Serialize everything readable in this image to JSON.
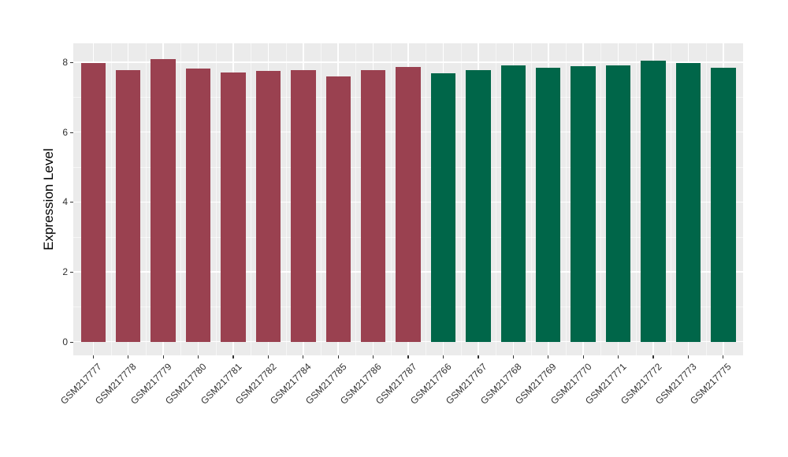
{
  "chart": {
    "background": "#ffffff",
    "panel_background": "#ebebeb",
    "grid_color": "#ffffff",
    "axis_text_color": "#303030",
    "tick_color": "#333333"
  },
  "chart_data": {
    "type": "bar",
    "title": "",
    "xlabel": "",
    "ylabel": "Expression Level",
    "ylim": [
      0,
      8.55
    ],
    "y_ticks": [
      0,
      2,
      4,
      6,
      8
    ],
    "y_minor_ticks": [
      1,
      3,
      5,
      7
    ],
    "grid": true,
    "legend_position": "none",
    "categories": [
      "GSM217777",
      "GSM217778",
      "GSM217779",
      "GSM217780",
      "GSM217781",
      "GSM217782",
      "GSM217784",
      "GSM217785",
      "GSM217786",
      "GSM217787",
      "GSM217766",
      "GSM217767",
      "GSM217768",
      "GSM217769",
      "GSM217770",
      "GSM217771",
      "GSM217772",
      "GSM217773",
      "GSM217775"
    ],
    "values": [
      7.98,
      7.78,
      8.1,
      7.83,
      7.71,
      7.76,
      7.78,
      7.6,
      7.78,
      7.86,
      7.69,
      7.78,
      7.92,
      7.84,
      7.89,
      7.9,
      8.05,
      7.97,
      7.84
    ],
    "group_index": [
      0,
      0,
      0,
      0,
      0,
      0,
      0,
      0,
      0,
      0,
      1,
      1,
      1,
      1,
      1,
      1,
      1,
      1,
      1
    ],
    "group_colors": [
      "#9a4150",
      "#006649"
    ]
  }
}
